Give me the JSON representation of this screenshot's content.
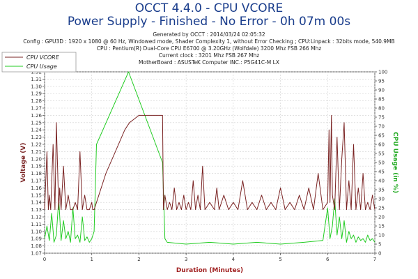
{
  "header": {
    "title": "OCCT 4.4.0 - CPU VCORE",
    "subtitle": "Power Supply - Finished - No Error - 0h 07m 00s",
    "info": [
      "Generated by OCCT : 2014/03/24 02:05:32",
      "Config : GPU3D : 1920 x 1080 @ 60 Hz, Windowed mode, Shader Complexity 1, without Error Checking ; CPU:Linpack : 32bits mode, 540.9MB",
      "CPU : Pentium(R) Dual-Core CPU E6700 @ 3.20GHz (Wolfdale) 3200 Mhz FSB 266 Mhz",
      "Current clock : 3201 Mhz FSB 267 Mhz",
      "MotherBoard : ASUSTeK Computer INC.: P5G41C-M LX"
    ]
  },
  "chart_data": {
    "type": "line",
    "xlabel": "Duration (Minutes)",
    "ylabel": "Voltage (V)",
    "y2label": "CPU Usage (in %)",
    "xlim": [
      0,
      7
    ],
    "ylim": [
      1.07,
      1.32
    ],
    "y2lim": [
      0,
      100
    ],
    "x_ticks": [
      "0",
      "1",
      "2",
      "3",
      "4",
      "5",
      "6",
      "7"
    ],
    "y_ticks": [
      "1.07",
      "1.08",
      "1.09",
      "1.10",
      "1.11",
      "1.12",
      "1.13",
      "1.14",
      "1.15",
      "1.16",
      "1.17",
      "1.18",
      "1.19",
      "1.20",
      "1.21",
      "1.22",
      "1.23",
      "1.24",
      "1.25",
      "1.26",
      "1.27",
      "1.28",
      "1.29",
      "1.30",
      "1.31",
      "1.32"
    ],
    "y2_ticks": [
      "0",
      "5",
      "10",
      "15",
      "20",
      "25",
      "30",
      "35",
      "40",
      "45",
      "50",
      "55",
      "60",
      "65",
      "70",
      "75",
      "80",
      "85",
      "90",
      "95",
      "100"
    ],
    "grid": true,
    "legend_position": "top-left",
    "series": [
      {
        "name": "CPU VCORE",
        "axis": "left",
        "color": "#7a2323",
        "x": [
          0,
          0.05,
          0.08,
          0.1,
          0.13,
          0.18,
          0.22,
          0.25,
          0.3,
          0.32,
          0.35,
          0.4,
          0.45,
          0.5,
          0.55,
          0.6,
          0.65,
          0.7,
          0.75,
          0.8,
          0.85,
          0.9,
          0.95,
          1.0,
          1.02,
          1.05,
          1.1,
          1.3,
          1.5,
          1.7,
          1.8,
          1.9,
          2.0,
          2.2,
          2.4,
          2.5,
          2.52,
          2.55,
          2.6,
          2.65,
          2.7,
          2.75,
          2.8,
          2.85,
          2.9,
          2.95,
          3.0,
          3.05,
          3.1,
          3.15,
          3.2,
          3.25,
          3.3,
          3.35,
          3.4,
          3.5,
          3.6,
          3.65,
          3.7,
          3.8,
          3.9,
          4.0,
          4.1,
          4.2,
          4.3,
          4.4,
          4.5,
          4.6,
          4.7,
          4.8,
          4.9,
          5.0,
          5.1,
          5.2,
          5.3,
          5.4,
          5.5,
          5.6,
          5.7,
          5.8,
          5.9,
          6.0,
          6.03,
          6.05,
          6.08,
          6.1,
          6.15,
          6.2,
          6.25,
          6.3,
          6.35,
          6.4,
          6.45,
          6.5,
          6.55,
          6.6,
          6.65,
          6.7,
          6.75,
          6.8,
          6.85,
          6.9,
          6.95,
          7.0
        ],
        "y": [
          1.13,
          1.21,
          1.13,
          1.15,
          1.13,
          1.22,
          1.13,
          1.25,
          1.13,
          1.16,
          1.13,
          1.19,
          1.13,
          1.15,
          1.13,
          1.13,
          1.14,
          1.13,
          1.21,
          1.13,
          1.15,
          1.13,
          1.13,
          1.14,
          1.13,
          1.13,
          1.14,
          1.18,
          1.21,
          1.24,
          1.25,
          1.255,
          1.26,
          1.26,
          1.26,
          1.26,
          1.13,
          1.15,
          1.13,
          1.14,
          1.13,
          1.16,
          1.13,
          1.14,
          1.13,
          1.15,
          1.13,
          1.14,
          1.13,
          1.17,
          1.13,
          1.15,
          1.13,
          1.19,
          1.13,
          1.14,
          1.13,
          1.16,
          1.13,
          1.15,
          1.13,
          1.14,
          1.13,
          1.17,
          1.13,
          1.14,
          1.13,
          1.15,
          1.13,
          1.14,
          1.13,
          1.16,
          1.13,
          1.14,
          1.13,
          1.15,
          1.13,
          1.16,
          1.13,
          1.18,
          1.13,
          1.14,
          1.24,
          1.14,
          1.26,
          1.15,
          1.13,
          1.23,
          1.13,
          1.2,
          1.25,
          1.13,
          1.17,
          1.13,
          1.22,
          1.13,
          1.16,
          1.13,
          1.18,
          1.13,
          1.14,
          1.13,
          1.15,
          1.13
        ]
      },
      {
        "name": "CPU Usage",
        "axis": "right",
        "color": "#22cc22",
        "x": [
          0,
          0.05,
          0.1,
          0.15,
          0.2,
          0.25,
          0.3,
          0.35,
          0.4,
          0.45,
          0.5,
          0.55,
          0.6,
          0.65,
          0.7,
          0.75,
          0.8,
          0.85,
          0.9,
          0.95,
          1.0,
          1.05,
          1.1,
          1.78,
          2.5,
          2.55,
          2.6,
          3.0,
          3.5,
          4.0,
          4.5,
          5.0,
          5.5,
          5.9,
          6.0,
          6.05,
          6.1,
          6.15,
          6.2,
          6.25,
          6.3,
          6.35,
          6.4,
          6.45,
          6.5,
          6.55,
          6.6,
          6.65,
          6.7,
          6.75,
          6.8,
          6.85,
          6.9,
          6.95,
          7.0
        ],
        "y": [
          8,
          15,
          7,
          22,
          6,
          10,
          30,
          7,
          18,
          8,
          12,
          6,
          25,
          8,
          10,
          6,
          20,
          7,
          9,
          6,
          8,
          12,
          60,
          100,
          50,
          8,
          6,
          5,
          6,
          5,
          6,
          5,
          6,
          7,
          25,
          8,
          15,
          30,
          10,
          20,
          8,
          18,
          6,
          12,
          8,
          10,
          6,
          9,
          7,
          8,
          6,
          10,
          7,
          8,
          6
        ]
      }
    ]
  }
}
